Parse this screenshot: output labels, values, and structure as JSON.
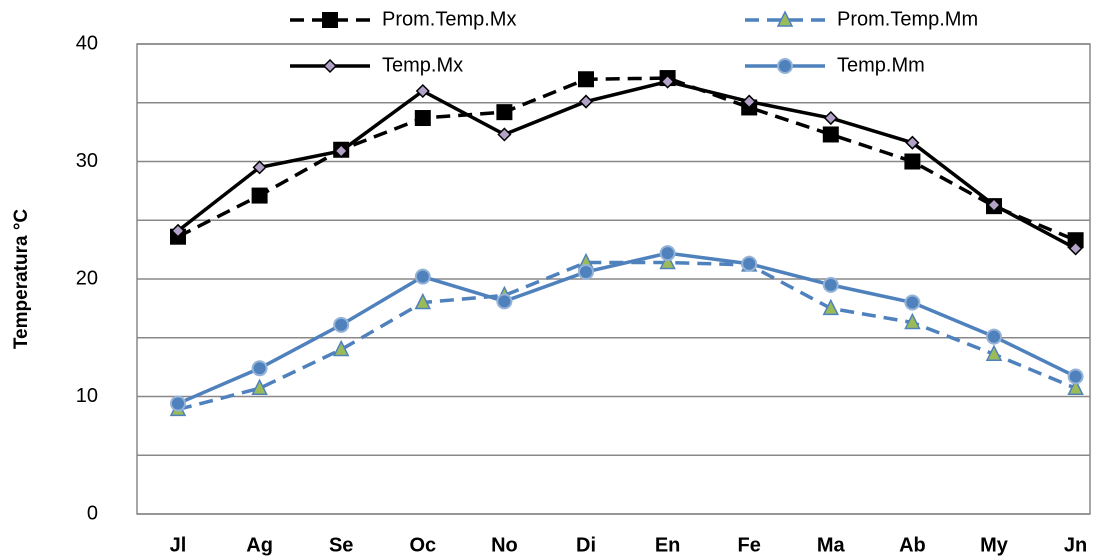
{
  "chart_data": {
    "type": "line",
    "y_label": "Temperatura °C",
    "categories": [
      "Jl",
      "Ag",
      "Se",
      "Oc",
      "No",
      "Di",
      "En",
      "Fe",
      "Ma",
      "Ab",
      "My",
      "Jn"
    ],
    "series": [
      {
        "name": "Prom.Temp.Mx",
        "color": "#000000",
        "dash": true,
        "marker": "square",
        "values": [
          23.6,
          27.1,
          31.0,
          33.7,
          34.2,
          37.0,
          37.1,
          34.6,
          32.3,
          30.0,
          26.2,
          23.3
        ]
      },
      {
        "name": "Prom.Temp.Mm",
        "color": "#4f81bd",
        "dash": true,
        "marker": "triangle",
        "values": [
          8.9,
          10.7,
          14.0,
          18.0,
          18.6,
          21.4,
          21.4,
          21.2,
          17.5,
          16.3,
          13.6,
          10.7
        ]
      },
      {
        "name": "Temp.Mx",
        "color": "#000000",
        "dash": false,
        "marker": "diamond",
        "values": [
          24.1,
          29.5,
          30.9,
          36.0,
          32.3,
          35.1,
          36.8,
          35.1,
          33.7,
          31.6,
          26.3,
          22.6
        ]
      },
      {
        "name": "Temp.Mm",
        "color": "#4f81bd",
        "dash": false,
        "marker": "circle",
        "values": [
          9.4,
          12.4,
          16.1,
          20.2,
          18.1,
          20.6,
          22.2,
          21.3,
          19.5,
          18.0,
          15.1,
          11.7
        ]
      }
    ],
    "ylim": [
      0,
      40
    ],
    "yticks": [
      0,
      10,
      20,
      30,
      40
    ],
    "minor_yticks": [
      5,
      15,
      25,
      35
    ],
    "grid": true
  }
}
